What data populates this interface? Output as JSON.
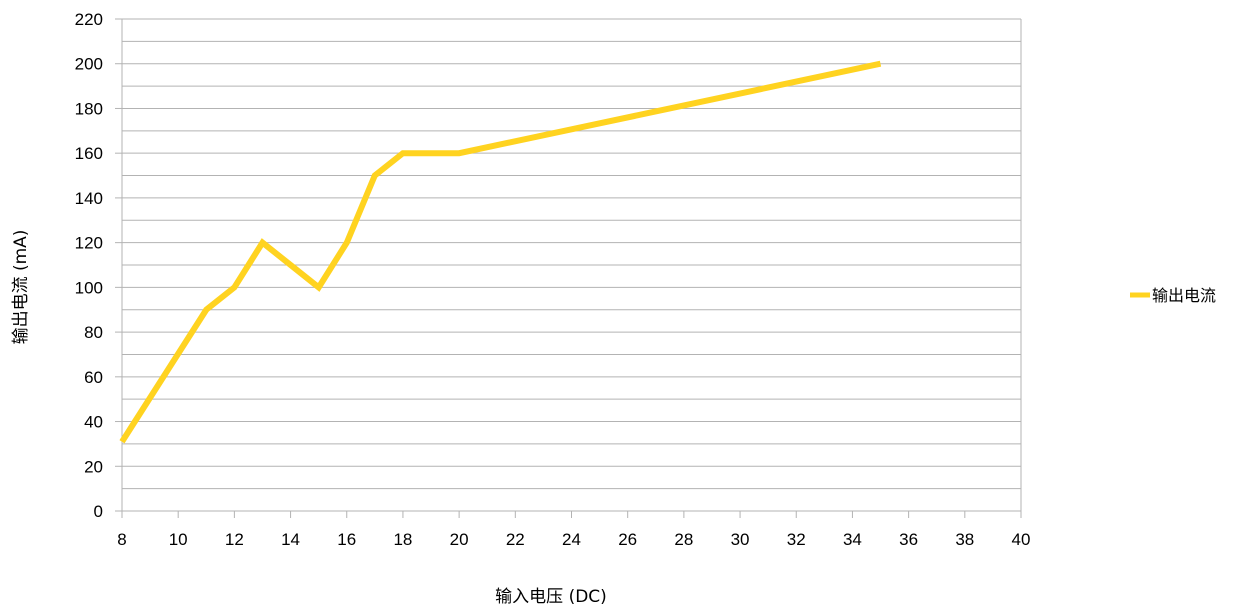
{
  "chart_data": {
    "type": "line",
    "title": "",
    "xlabel": "输入电压 (DC)",
    "ylabel": "输出电流 (mA)",
    "xlim": [
      8,
      40
    ],
    "ylim": [
      0,
      220
    ],
    "x_ticks": [
      8,
      10,
      12,
      14,
      16,
      18,
      20,
      22,
      24,
      26,
      28,
      30,
      32,
      34,
      36,
      38,
      40
    ],
    "y_ticks": [
      0,
      20,
      40,
      60,
      80,
      100,
      120,
      140,
      160,
      180,
      200,
      220
    ],
    "grid": true,
    "legend_position": "right",
    "series": [
      {
        "name": "输出电流",
        "color": "#FFD320",
        "x": [
          8,
          11,
          12,
          13,
          15,
          16,
          17,
          18,
          20,
          35
        ],
        "y": [
          31,
          90,
          100,
          120,
          100,
          120,
          150,
          160,
          160,
          200
        ]
      }
    ]
  }
}
